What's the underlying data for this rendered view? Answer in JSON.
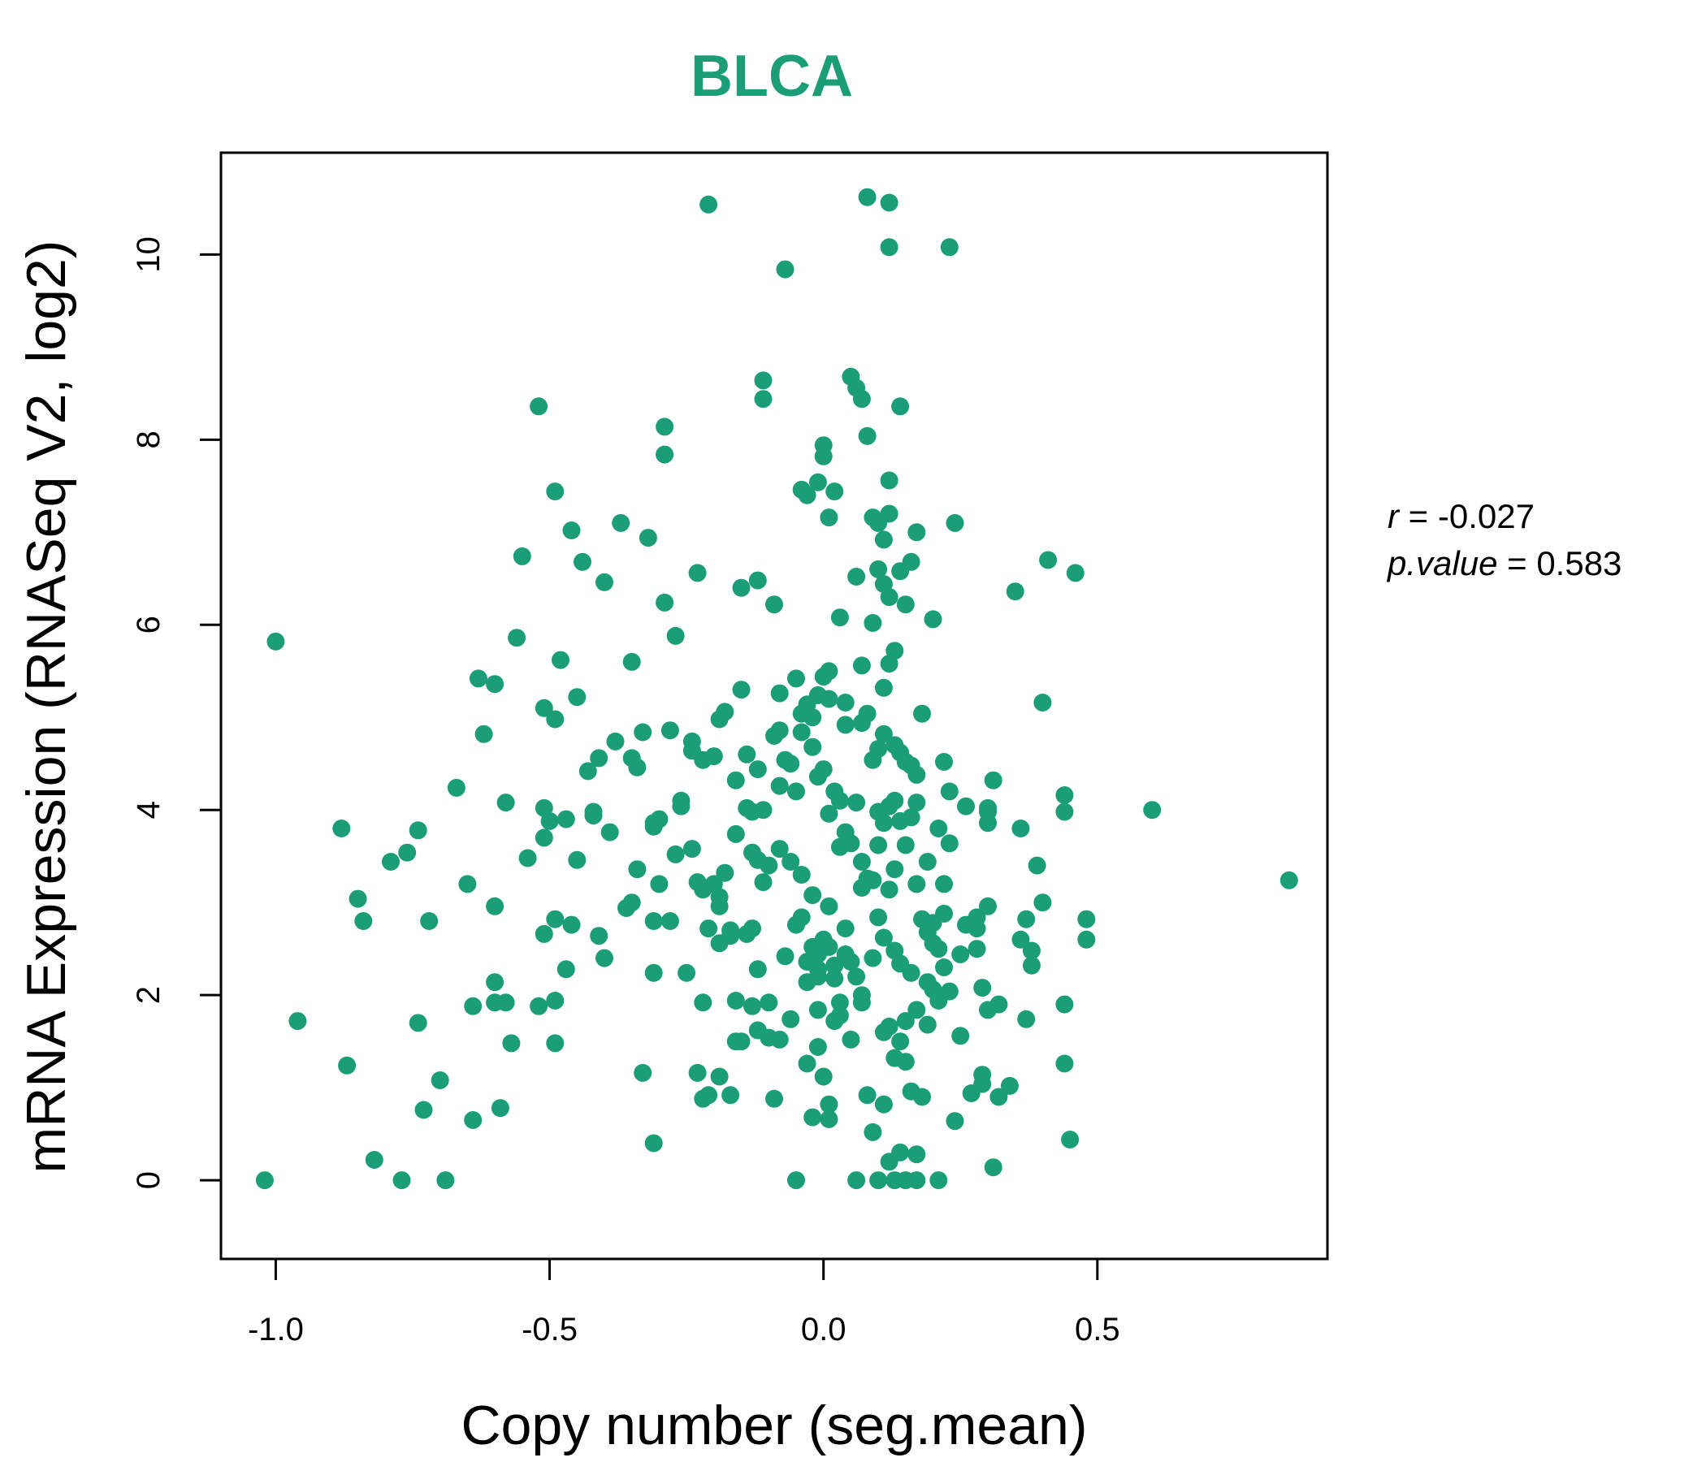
{
  "chart_data": {
    "type": "scatter",
    "title": "BLCA",
    "xlabel": "Copy number (seg.mean)",
    "ylabel": "mRNA Expression (RNASeq V2, log2)",
    "xlim": [
      -1.1,
      0.92
    ],
    "ylim": [
      -0.85,
      11.1
    ],
    "x_ticks": [
      -1.0,
      -0.5,
      0.0,
      0.5
    ],
    "x_tick_labels": [
      "-1.0",
      "-0.5",
      "0.0",
      "0.5"
    ],
    "y_ticks": [
      0,
      2,
      4,
      6,
      8,
      10
    ],
    "y_tick_labels": [
      "0",
      "2",
      "4",
      "6",
      "8",
      "10"
    ],
    "grid": false,
    "legend": "none",
    "colors": {
      "points": "#1b9e77",
      "title": "#1b9e77",
      "axis": "#000000"
    },
    "stats": {
      "r_label": "r",
      "r_value": "-0.027",
      "p_label": "p.value",
      "p_value": "0.583"
    },
    "points": [
      [
        -1.02,
        0.0
      ],
      [
        -1.0,
        5.82
      ],
      [
        -0.96,
        1.72
      ],
      [
        -0.88,
        3.8
      ],
      [
        -0.87,
        1.24
      ],
      [
        -0.85,
        3.04
      ],
      [
        -0.84,
        2.8
      ],
      [
        -0.82,
        0.22
      ],
      [
        -0.79,
        3.44
      ],
      [
        -0.76,
        3.54
      ],
      [
        -0.77,
        0.0
      ],
      [
        -0.74,
        3.78
      ],
      [
        -0.74,
        1.7
      ],
      [
        -0.73,
        0.76
      ],
      [
        -0.72,
        2.8
      ],
      [
        -0.7,
        1.08
      ],
      [
        -0.69,
        0.0
      ],
      [
        -0.67,
        4.24
      ],
      [
        -0.65,
        3.2
      ],
      [
        -0.64,
        1.88
      ],
      [
        -0.64,
        0.65
      ],
      [
        -0.63,
        5.42
      ],
      [
        -0.62,
        4.82
      ],
      [
        -0.6,
        5.36
      ],
      [
        -0.6,
        2.14
      ],
      [
        -0.6,
        1.92
      ],
      [
        -0.6,
        2.96
      ],
      [
        -0.59,
        0.78
      ],
      [
        -0.58,
        1.92
      ],
      [
        -0.58,
        4.08
      ],
      [
        -0.57,
        1.48
      ],
      [
        -0.56,
        5.86
      ],
      [
        -0.55,
        6.74
      ],
      [
        -0.54,
        3.48
      ],
      [
        -0.52,
        8.36
      ],
      [
        -0.52,
        1.88
      ],
      [
        -0.51,
        3.7
      ],
      [
        -0.51,
        4.02
      ],
      [
        -0.51,
        2.66
      ],
      [
        -0.51,
        5.1
      ],
      [
        -0.5,
        3.88
      ],
      [
        -0.49,
        1.94
      ],
      [
        -0.49,
        2.82
      ],
      [
        -0.49,
        4.98
      ],
      [
        -0.49,
        1.48
      ],
      [
        -0.49,
        7.44
      ],
      [
        -0.48,
        5.62
      ],
      [
        -0.47,
        3.9
      ],
      [
        -0.47,
        2.28
      ],
      [
        -0.46,
        7.02
      ],
      [
        -0.46,
        2.76
      ],
      [
        -0.45,
        3.46
      ],
      [
        -0.45,
        5.22
      ],
      [
        -0.44,
        6.68
      ],
      [
        -0.43,
        4.42
      ],
      [
        -0.42,
        3.98
      ],
      [
        -0.42,
        3.94
      ],
      [
        -0.41,
        2.64
      ],
      [
        -0.41,
        4.56
      ],
      [
        -0.4,
        6.46
      ],
      [
        -0.4,
        2.4
      ],
      [
        -0.39,
        3.76
      ],
      [
        -0.38,
        4.74
      ],
      [
        -0.37,
        7.1
      ],
      [
        -0.36,
        2.94
      ],
      [
        -0.35,
        4.56
      ],
      [
        -0.35,
        3.0
      ],
      [
        -0.35,
        5.6
      ],
      [
        -0.34,
        3.36
      ],
      [
        -0.34,
        4.46
      ],
      [
        -0.33,
        4.84
      ],
      [
        -0.33,
        1.16
      ],
      [
        -0.32,
        6.94
      ],
      [
        -0.31,
        3.82
      ],
      [
        -0.31,
        0.4
      ],
      [
        -0.31,
        2.8
      ],
      [
        -0.31,
        3.86
      ],
      [
        -0.31,
        2.24
      ],
      [
        -0.3,
        3.2
      ],
      [
        -0.3,
        3.9
      ],
      [
        -0.29,
        6.24
      ],
      [
        -0.29,
        7.84
      ],
      [
        -0.29,
        8.14
      ],
      [
        -0.28,
        4.86
      ],
      [
        -0.28,
        2.8
      ],
      [
        -0.27,
        3.52
      ],
      [
        -0.27,
        5.88
      ],
      [
        -0.26,
        4.04
      ],
      [
        -0.26,
        4.1
      ],
      [
        -0.25,
        2.24
      ],
      [
        -0.24,
        4.64
      ],
      [
        -0.24,
        4.74
      ],
      [
        -0.24,
        3.58
      ],
      [
        -0.23,
        1.16
      ],
      [
        -0.23,
        3.22
      ],
      [
        -0.23,
        6.56
      ],
      [
        -0.22,
        3.14
      ],
      [
        -0.22,
        1.92
      ],
      [
        -0.22,
        0.88
      ],
      [
        -0.22,
        4.54
      ],
      [
        -0.21,
        2.72
      ],
      [
        -0.21,
        0.92
      ],
      [
        -0.21,
        10.54
      ],
      [
        -0.2,
        3.2
      ],
      [
        -0.2,
        4.58
      ],
      [
        -0.19,
        4.98
      ],
      [
        -0.19,
        2.96
      ],
      [
        -0.19,
        3.06
      ],
      [
        -0.19,
        1.12
      ],
      [
        -0.19,
        2.56
      ],
      [
        -0.18,
        3.32
      ],
      [
        -0.18,
        5.06
      ],
      [
        -0.17,
        2.64
      ],
      [
        -0.17,
        0.92
      ],
      [
        -0.17,
        2.7
      ],
      [
        -0.16,
        3.74
      ],
      [
        -0.16,
        4.32
      ],
      [
        -0.16,
        1.5
      ],
      [
        -0.16,
        1.94
      ],
      [
        -0.15,
        6.4
      ],
      [
        -0.15,
        5.3
      ],
      [
        -0.15,
        1.5
      ],
      [
        -0.14,
        4.6
      ],
      [
        -0.14,
        4.02
      ],
      [
        -0.14,
        2.66
      ],
      [
        -0.13,
        2.72
      ],
      [
        -0.13,
        3.54
      ],
      [
        -0.13,
        3.98
      ],
      [
        -0.13,
        1.88
      ],
      [
        -0.12,
        6.48
      ],
      [
        -0.12,
        1.62
      ],
      [
        -0.12,
        4.44
      ],
      [
        -0.12,
        2.28
      ],
      [
        -0.12,
        3.46
      ],
      [
        -0.11,
        8.64
      ],
      [
        -0.11,
        8.44
      ],
      [
        -0.11,
        4.0
      ],
      [
        -0.11,
        3.22
      ],
      [
        -0.1,
        1.92
      ],
      [
        -0.1,
        1.54
      ],
      [
        -0.1,
        3.4
      ],
      [
        -0.09,
        6.22
      ],
      [
        -0.09,
        4.8
      ],
      [
        -0.09,
        0.88
      ],
      [
        -0.08,
        4.86
      ],
      [
        -0.08,
        5.26
      ],
      [
        -0.08,
        4.26
      ],
      [
        -0.08,
        3.58
      ],
      [
        -0.08,
        1.52
      ],
      [
        -0.07,
        9.84
      ],
      [
        -0.07,
        2.42
      ],
      [
        -0.07,
        4.54
      ],
      [
        -0.06,
        4.5
      ],
      [
        -0.06,
        3.44
      ],
      [
        -0.06,
        1.74
      ],
      [
        -0.05,
        5.42
      ],
      [
        -0.05,
        4.2
      ],
      [
        -0.05,
        2.76
      ],
      [
        -0.05,
        0.0
      ],
      [
        -0.04,
        7.46
      ],
      [
        -0.04,
        2.84
      ],
      [
        -0.04,
        5.04
      ],
      [
        -0.04,
        4.84
      ],
      [
        -0.04,
        3.3
      ],
      [
        -0.03,
        7.4
      ],
      [
        -0.03,
        5.14
      ],
      [
        -0.03,
        2.36
      ],
      [
        -0.03,
        2.14
      ],
      [
        -0.03,
        1.26
      ],
      [
        -0.02,
        4.68
      ],
      [
        -0.02,
        5.0
      ],
      [
        -0.02,
        2.52
      ],
      [
        -0.02,
        3.08
      ],
      [
        -0.02,
        0.68
      ],
      [
        -0.01,
        7.54
      ],
      [
        -0.01,
        5.24
      ],
      [
        -0.01,
        4.36
      ],
      [
        -0.01,
        2.44
      ],
      [
        -0.01,
        2.28
      ],
      [
        -0.01,
        2.2
      ],
      [
        -0.01,
        1.84
      ],
      [
        -0.01,
        1.44
      ],
      [
        0.0,
        7.94
      ],
      [
        0.0,
        7.82
      ],
      [
        0.0,
        5.44
      ],
      [
        0.0,
        4.44
      ],
      [
        0.0,
        2.52
      ],
      [
        0.0,
        1.12
      ],
      [
        0.0,
        2.6
      ],
      [
        0.01,
        7.16
      ],
      [
        0.01,
        5.5
      ],
      [
        0.01,
        5.2
      ],
      [
        0.01,
        3.96
      ],
      [
        0.01,
        2.96
      ],
      [
        0.01,
        2.52
      ],
      [
        0.01,
        0.82
      ],
      [
        0.01,
        0.66
      ],
      [
        0.02,
        7.44
      ],
      [
        0.02,
        4.2
      ],
      [
        0.02,
        2.32
      ],
      [
        0.02,
        2.18
      ],
      [
        0.02,
        1.72
      ],
      [
        0.03,
        6.08
      ],
      [
        0.03,
        4.1
      ],
      [
        0.03,
        3.6
      ],
      [
        0.03,
        1.92
      ],
      [
        0.03,
        1.78
      ],
      [
        0.04,
        5.16
      ],
      [
        0.04,
        4.92
      ],
      [
        0.04,
        3.76
      ],
      [
        0.04,
        2.72
      ],
      [
        0.04,
        2.44
      ],
      [
        0.05,
        8.68
      ],
      [
        0.05,
        3.64
      ],
      [
        0.05,
        2.36
      ],
      [
        0.05,
        1.52
      ],
      [
        0.06,
        8.56
      ],
      [
        0.06,
        6.52
      ],
      [
        0.06,
        4.08
      ],
      [
        0.06,
        2.2
      ],
      [
        0.06,
        0.0
      ],
      [
        0.07,
        8.44
      ],
      [
        0.07,
        5.56
      ],
      [
        0.07,
        4.94
      ],
      [
        0.07,
        3.44
      ],
      [
        0.07,
        3.16
      ],
      [
        0.07,
        2.0
      ],
      [
        0.07,
        1.92
      ],
      [
        0.08,
        10.62
      ],
      [
        0.08,
        8.04
      ],
      [
        0.08,
        5.04
      ],
      [
        0.08,
        3.26
      ],
      [
        0.08,
        0.92
      ],
      [
        0.09,
        7.16
      ],
      [
        0.09,
        6.02
      ],
      [
        0.09,
        4.54
      ],
      [
        0.09,
        3.24
      ],
      [
        0.09,
        2.4
      ],
      [
        0.09,
        0.52
      ],
      [
        0.1,
        7.1
      ],
      [
        0.1,
        6.6
      ],
      [
        0.1,
        4.66
      ],
      [
        0.1,
        3.98
      ],
      [
        0.1,
        3.62
      ],
      [
        0.1,
        2.84
      ],
      [
        0.1,
        0.0
      ],
      [
        0.11,
        6.92
      ],
      [
        0.11,
        6.44
      ],
      [
        0.11,
        5.32
      ],
      [
        0.11,
        4.82
      ],
      [
        0.11,
        3.86
      ],
      [
        0.11,
        2.62
      ],
      [
        0.11,
        1.6
      ],
      [
        0.11,
        0.82
      ],
      [
        0.12,
        10.56
      ],
      [
        0.12,
        10.08
      ],
      [
        0.12,
        7.56
      ],
      [
        0.12,
        7.2
      ],
      [
        0.12,
        6.3
      ],
      [
        0.12,
        5.58
      ],
      [
        0.12,
        4.04
      ],
      [
        0.12,
        3.14
      ],
      [
        0.12,
        1.66
      ],
      [
        0.12,
        0.2
      ],
      [
        0.13,
        5.72
      ],
      [
        0.13,
        4.7
      ],
      [
        0.13,
        4.1
      ],
      [
        0.13,
        3.36
      ],
      [
        0.13,
        2.48
      ],
      [
        0.13,
        1.32
      ],
      [
        0.13,
        0.0
      ],
      [
        0.14,
        8.36
      ],
      [
        0.14,
        6.58
      ],
      [
        0.14,
        4.62
      ],
      [
        0.14,
        3.88
      ],
      [
        0.14,
        2.34
      ],
      [
        0.14,
        1.5
      ],
      [
        0.14,
        0.3
      ],
      [
        0.15,
        6.22
      ],
      [
        0.15,
        4.52
      ],
      [
        0.15,
        3.62
      ],
      [
        0.15,
        1.72
      ],
      [
        0.15,
        1.28
      ],
      [
        0.15,
        0.0
      ],
      [
        0.16,
        6.68
      ],
      [
        0.16,
        4.48
      ],
      [
        0.16,
        3.92
      ],
      [
        0.16,
        2.24
      ],
      [
        0.16,
        0.96
      ],
      [
        0.17,
        7.0
      ],
      [
        0.17,
        4.38
      ],
      [
        0.17,
        4.08
      ],
      [
        0.17,
        3.2
      ],
      [
        0.17,
        1.84
      ],
      [
        0.17,
        0.28
      ],
      [
        0.17,
        0.0
      ],
      [
        0.18,
        5.04
      ],
      [
        0.18,
        2.82
      ],
      [
        0.18,
        0.9
      ],
      [
        0.19,
        3.44
      ],
      [
        0.19,
        2.68
      ],
      [
        0.19,
        2.14
      ],
      [
        0.19,
        1.68
      ],
      [
        0.2,
        6.06
      ],
      [
        0.2,
        2.78
      ],
      [
        0.2,
        2.56
      ],
      [
        0.2,
        2.06
      ],
      [
        0.21,
        3.8
      ],
      [
        0.21,
        2.5
      ],
      [
        0.21,
        1.94
      ],
      [
        0.21,
        0.0
      ],
      [
        0.22,
        4.52
      ],
      [
        0.22,
        3.2
      ],
      [
        0.22,
        2.88
      ],
      [
        0.22,
        2.3
      ],
      [
        0.23,
        10.08
      ],
      [
        0.23,
        4.2
      ],
      [
        0.23,
        3.64
      ],
      [
        0.23,
        2.04
      ],
      [
        0.24,
        7.1
      ],
      [
        0.24,
        0.64
      ],
      [
        0.25,
        2.44
      ],
      [
        0.25,
        1.56
      ],
      [
        0.26,
        4.04
      ],
      [
        0.26,
        2.76
      ],
      [
        0.27,
        0.94
      ],
      [
        0.28,
        2.84
      ],
      [
        0.28,
        2.72
      ],
      [
        0.28,
        2.5
      ],
      [
        0.29,
        2.08
      ],
      [
        0.29,
        1.14
      ],
      [
        0.29,
        1.04
      ],
      [
        0.3,
        4.02
      ],
      [
        0.3,
        3.98
      ],
      [
        0.3,
        3.86
      ],
      [
        0.3,
        2.96
      ],
      [
        0.3,
        1.84
      ],
      [
        0.31,
        4.32
      ],
      [
        0.31,
        0.14
      ],
      [
        0.32,
        1.9
      ],
      [
        0.32,
        0.9
      ],
      [
        0.34,
        1.02
      ],
      [
        0.35,
        6.36
      ],
      [
        0.36,
        3.8
      ],
      [
        0.36,
        2.6
      ],
      [
        0.37,
        2.82
      ],
      [
        0.37,
        1.74
      ],
      [
        0.38,
        2.32
      ],
      [
        0.38,
        2.48
      ],
      [
        0.39,
        3.4
      ],
      [
        0.4,
        5.16
      ],
      [
        0.4,
        3.0
      ],
      [
        0.41,
        6.7
      ],
      [
        0.44,
        3.98
      ],
      [
        0.44,
        4.16
      ],
      [
        0.44,
        1.9
      ],
      [
        0.44,
        1.26
      ],
      [
        0.45,
        0.44
      ],
      [
        0.46,
        6.56
      ],
      [
        0.48,
        2.82
      ],
      [
        0.48,
        2.6
      ],
      [
        0.6,
        4.0
      ],
      [
        0.85,
        3.24
      ]
    ]
  }
}
